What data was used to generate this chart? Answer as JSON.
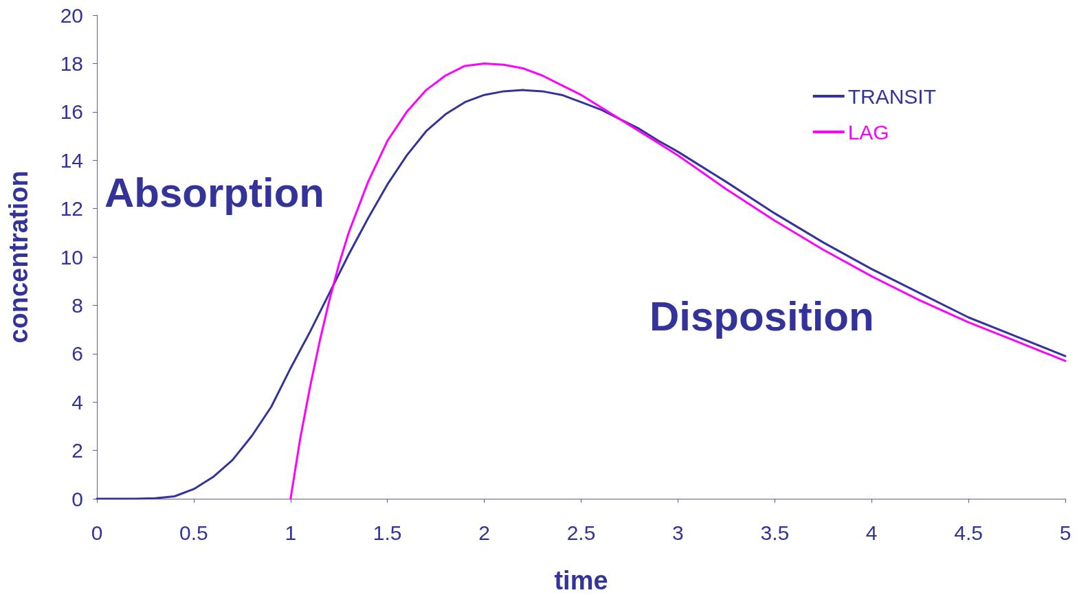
{
  "chart_data": {
    "type": "line",
    "xlabel": "time",
    "ylabel": "concentration",
    "annotations": [
      "Absorption",
      "Disposition"
    ],
    "xlim": [
      0,
      5
    ],
    "xticks": [
      0,
      0.5,
      1,
      1.5,
      2,
      2.5,
      3,
      3.5,
      4,
      4.5,
      5
    ],
    "ylim": [
      0,
      20
    ],
    "yticks": [
      0,
      2,
      4,
      6,
      8,
      10,
      12,
      14,
      16,
      18,
      20
    ],
    "grid": false,
    "legend": "top right",
    "marker": "none",
    "line_style": "solid",
    "series": [
      {
        "name": "TRANSIT",
        "color": "#333399",
        "x": [
          0,
          0.2,
          0.3,
          0.4,
          0.5,
          0.6,
          0.7,
          0.8,
          0.9,
          1.0,
          1.1,
          1.2,
          1.3,
          1.4,
          1.5,
          1.6,
          1.7,
          1.8,
          1.9,
          2.0,
          2.1,
          2.2,
          2.3,
          2.4,
          2.5,
          2.6,
          2.7,
          2.8,
          2.9,
          3.0,
          3.25,
          3.5,
          3.75,
          4.0,
          4.25,
          4.5,
          4.75,
          5.0
        ],
        "values": [
          0,
          0,
          0.02,
          0.1,
          0.4,
          0.9,
          1.6,
          2.6,
          3.8,
          5.4,
          6.9,
          8.5,
          10.1,
          11.6,
          13.0,
          14.2,
          15.2,
          15.9,
          16.4,
          16.7,
          16.85,
          16.9,
          16.85,
          16.7,
          16.4,
          16.1,
          15.7,
          15.3,
          14.8,
          14.35,
          13.1,
          11.8,
          10.6,
          9.5,
          8.5,
          7.5,
          6.7,
          5.9
        ]
      },
      {
        "name": "LAG",
        "color": "#ff00ff",
        "x": [
          1.0,
          1.05,
          1.1,
          1.15,
          1.2,
          1.25,
          1.3,
          1.4,
          1.5,
          1.6,
          1.7,
          1.8,
          1.9,
          2.0,
          2.1,
          2.2,
          2.3,
          2.4,
          2.5,
          2.6,
          2.7,
          2.8,
          2.9,
          3.0,
          3.25,
          3.5,
          3.75,
          4.0,
          4.25,
          4.5,
          4.75,
          5.0
        ],
        "values": [
          0,
          2.5,
          4.6,
          6.5,
          8.2,
          9.7,
          11.0,
          13.1,
          14.8,
          16.0,
          16.9,
          17.5,
          17.9,
          18.0,
          17.95,
          17.8,
          17.5,
          17.1,
          16.7,
          16.2,
          15.7,
          15.2,
          14.7,
          14.2,
          12.8,
          11.5,
          10.3,
          9.2,
          8.2,
          7.3,
          6.5,
          5.7
        ]
      }
    ]
  }
}
